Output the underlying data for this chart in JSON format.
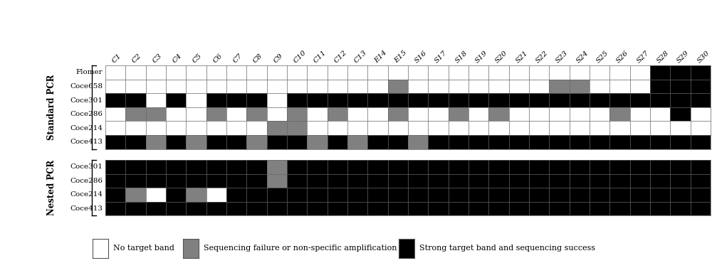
{
  "col_labels": [
    "C1",
    "C2",
    "C3",
    "C4",
    "C5",
    "C6",
    "C7",
    "C8",
    "C9",
    "C10",
    "C11",
    "C12",
    "C13",
    "E14",
    "E15",
    "S16",
    "S17",
    "S18",
    "S19",
    "S20",
    "S21",
    "S22",
    "S23",
    "S24",
    "S25",
    "S26",
    "S27",
    "S28",
    "S29",
    "S30"
  ],
  "standard_row_names": [
    "Flomer",
    "Coce658",
    "Coce301",
    "Coce286",
    "Coce214",
    "Coce413"
  ],
  "nested_row_names": [
    "Coce301",
    "Coce286",
    "Coce214",
    "Coce413"
  ],
  "standard_data": [
    [
      0,
      0,
      0,
      0,
      0,
      0,
      0,
      0,
      0,
      0,
      0,
      0,
      0,
      0,
      0,
      0,
      0,
      0,
      0,
      0,
      0,
      0,
      0,
      0,
      0,
      0,
      0,
      2,
      2,
      2
    ],
    [
      0,
      0,
      0,
      0,
      0,
      0,
      0,
      0,
      0,
      0,
      0,
      0,
      0,
      0,
      1,
      0,
      0,
      0,
      0,
      0,
      0,
      0,
      1,
      1,
      0,
      0,
      0,
      2,
      2,
      2
    ],
    [
      2,
      2,
      0,
      2,
      0,
      2,
      2,
      2,
      0,
      2,
      2,
      2,
      2,
      2,
      2,
      2,
      2,
      2,
      2,
      2,
      2,
      2,
      2,
      2,
      2,
      2,
      2,
      2,
      2,
      2
    ],
    [
      0,
      1,
      1,
      0,
      0,
      1,
      0,
      1,
      0,
      1,
      0,
      1,
      0,
      0,
      1,
      0,
      0,
      1,
      0,
      1,
      0,
      0,
      0,
      0,
      0,
      1,
      0,
      0,
      2,
      0
    ],
    [
      0,
      0,
      0,
      0,
      0,
      0,
      0,
      0,
      1,
      1,
      0,
      0,
      0,
      0,
      0,
      0,
      0,
      0,
      0,
      0,
      0,
      0,
      0,
      0,
      0,
      0,
      0,
      0,
      0,
      0
    ],
    [
      2,
      2,
      1,
      2,
      1,
      2,
      2,
      1,
      2,
      2,
      1,
      2,
      1,
      2,
      2,
      1,
      2,
      2,
      2,
      2,
      2,
      2,
      2,
      2,
      2,
      2,
      2,
      2,
      2,
      2
    ]
  ],
  "nested_data": [
    [
      2,
      2,
      2,
      2,
      2,
      2,
      2,
      2,
      1,
      2,
      2,
      2,
      2,
      2,
      2,
      2,
      2,
      2,
      2,
      2,
      2,
      2,
      2,
      2,
      2,
      2,
      2,
      2,
      2,
      2
    ],
    [
      2,
      2,
      2,
      2,
      2,
      2,
      2,
      2,
      1,
      2,
      2,
      2,
      2,
      2,
      2,
      2,
      2,
      2,
      2,
      2,
      2,
      2,
      2,
      2,
      2,
      2,
      2,
      2,
      2,
      2
    ],
    [
      2,
      1,
      0,
      2,
      1,
      0,
      2,
      2,
      2,
      2,
      2,
      2,
      2,
      2,
      2,
      2,
      2,
      2,
      2,
      2,
      2,
      2,
      2,
      2,
      2,
      2,
      2,
      2,
      2,
      2
    ],
    [
      2,
      2,
      2,
      2,
      2,
      2,
      2,
      2,
      2,
      2,
      2,
      2,
      2,
      2,
      2,
      2,
      2,
      2,
      2,
      2,
      2,
      2,
      2,
      2,
      2,
      2,
      2,
      2,
      2,
      2
    ]
  ],
  "colors": [
    "#ffffff",
    "#808080",
    "#000000"
  ],
  "cell_edge_color": "#666666",
  "bg_color": "#ffffff",
  "legend_labels": [
    "No target band",
    "Sequencing failure or non-specific amplification",
    "Strong target band and sequencing success"
  ],
  "standard_label": "Standard PCR",
  "nested_label": "Nested PCR",
  "row_label_fontsize": 7.5,
  "col_label_fontsize": 7.5,
  "group_label_fontsize": 8.5,
  "legend_fontsize": 8.0
}
